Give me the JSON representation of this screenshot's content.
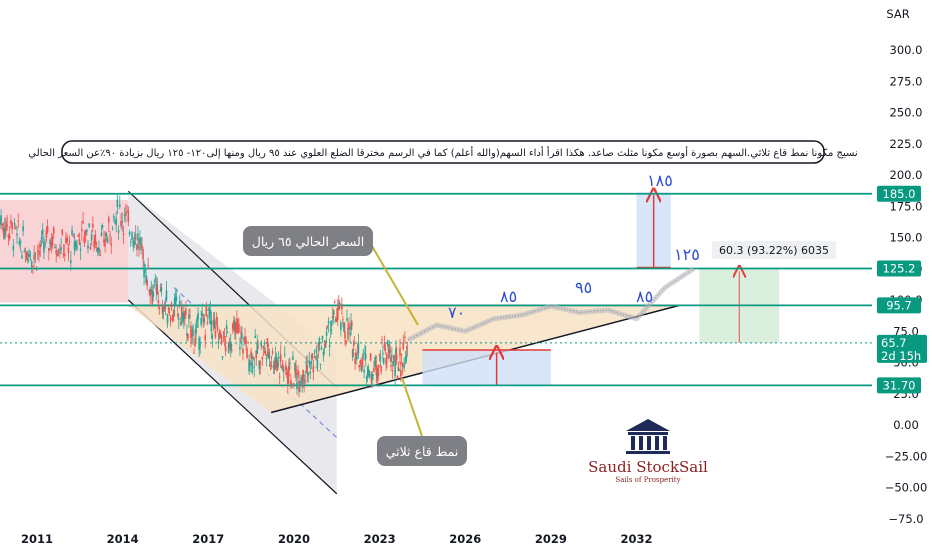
{
  "currency": "SAR",
  "chart_data": {
    "type": "candlestick",
    "ylim": [
      -75,
      325
    ],
    "xlim": [
      2009.5,
      2036.5
    ],
    "y_ticks": [
      300,
      275,
      250,
      225,
      200,
      175,
      150,
      125,
      100,
      75,
      50,
      25,
      0,
      -25,
      -50,
      -75
    ],
    "y_tick_labels": [
      "300.0",
      "275.0",
      "250.0",
      "225.0",
      "200.0",
      "175.0",
      "150.0",
      "125.0",
      "100.0",
      "75.0",
      "50.0",
      "25.0",
      "0.00",
      "−25.00",
      "−50.00",
      "−75.0"
    ],
    "x_ticks": [
      2011,
      2014,
      2017,
      2020,
      2023,
      2026,
      2029,
      2032
    ],
    "series": [
      {
        "type": "candles",
        "x": [
          2009.7,
          2010.3,
          2010.9,
          2011.5,
          2012.1,
          2012.7,
          2013.3,
          2013.9,
          2014.5,
          2015.0,
          2015.5,
          2016.0,
          2016.5,
          2017.0,
          2017.5,
          2018.0,
          2018.5,
          2019.0,
          2019.5,
          2020.0,
          2020.5,
          2021.0,
          2021.5,
          2022.0,
          2022.4,
          2022.8,
          2023.2,
          2023.6,
          2024.0
        ],
        "y": [
          165,
          150,
          135,
          150,
          140,
          155,
          145,
          170,
          150,
          110,
          95,
          90,
          70,
          85,
          65,
          75,
          55,
          60,
          50,
          40,
          45,
          60,
          90,
          70,
          50,
          45,
          60,
          45,
          65
        ]
      },
      {
        "type": "projection",
        "x": [
          2024.0,
          2025.0,
          2026.0,
          2027.0,
          2028.0,
          2029.0,
          2030.0,
          2031.0,
          2032.0,
          2033.0,
          2034.0
        ],
        "y": [
          68,
          80,
          75,
          85,
          88,
          95,
          90,
          92,
          85,
          110,
          125
        ]
      }
    ],
    "horizontal_levels": [
      {
        "value": 185.0,
        "label": "185.0",
        "color": "#089981"
      },
      {
        "value": 125.2,
        "label": "125.2",
        "color": "#089981"
      },
      {
        "value": 95.7,
        "label": "95.7",
        "color": "#089981"
      },
      {
        "value": 31.7,
        "label": "31.70",
        "color": "#089981"
      }
    ],
    "current_price": {
      "value": 65.7,
      "label": "65.7",
      "countdown": "2d 15h",
      "color": "#089981"
    },
    "measurement": {
      "label": "60.3 (93.22%) 6035"
    },
    "wave_labels": [
      "٧٠",
      "٨٥",
      "٩٥",
      "٨٥",
      "١٢٥",
      "١٨٥"
    ],
    "annotation": "نسيج مكونا نمط قاع ثلاثي.السهم بصورة أوسع مكونا مثلث صاعد. هكذا اقرأ أداء السهم(والله أعلم) كما في الرسم مخترقا الضلع العلوي عند ٩٥ ريال ومنها إلى١٢٠- ١٢٥ ريال بزيادة ٩٠٪عن السعر الحالي",
    "callouts": [
      "السعر الحالي ٦٥ ريال",
      "نمط قاع ثلاثي"
    ]
  },
  "logo": {
    "title": "Saudi StockSail",
    "subtitle": "Sails of Prosperity",
    "color": "#8b1e1e"
  }
}
